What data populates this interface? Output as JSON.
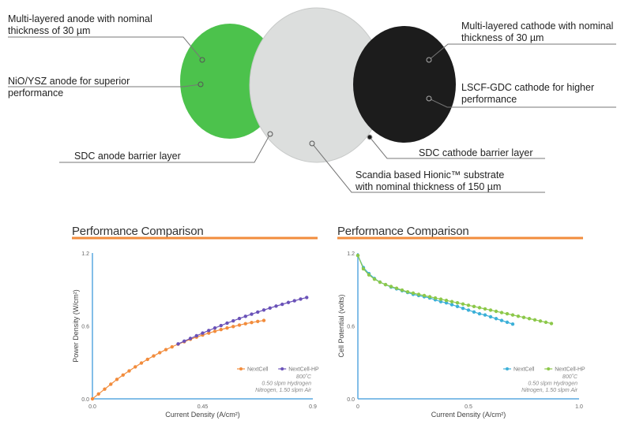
{
  "diagram": {
    "labels": {
      "anode_multilayer": "Multi-layered anode with nominal\nthickness of 30 µm",
      "anode_nio": "NiO/YSZ anode for superior\nperformance",
      "anode_barrier": "SDC anode barrier layer",
      "cathode_multilayer": "Multi-layered cathode with nominal\nthickness of 30 µm",
      "cathode_lscf": "LSCF-GDC cathode for higher\nperformance",
      "cathode_barrier": "SDC cathode barrier layer",
      "substrate": "Scandia based Hionic™ substrate\nwith nominal thickness of 150 µm"
    },
    "colors": {
      "anode": "#4cc24c",
      "substrate": "#dcdedd",
      "cathode": "#1c1c1c",
      "accent": "#f28c3c"
    }
  },
  "chart_data": [
    {
      "type": "scatter",
      "title": "Performance Comparison",
      "xlabel": "Current Density (A/cm²)",
      "ylabel": "Power Density (W/cm²)",
      "xlim": [
        0,
        0.9
      ],
      "ylim": [
        0,
        1.2
      ],
      "xticks": [
        "0.0",
        "0.45",
        "0.9"
      ],
      "yticks": [
        "0.0",
        "0.6",
        "1.2"
      ],
      "legend": "bottom-right",
      "annotation": "800˚C\n0.50 slpm Hydrogen\nNitrogen, 1.50 slpm Air",
      "series": [
        {
          "name": "NextCell",
          "color": "#f28c3c",
          "x": [
            0.0,
            0.025,
            0.05,
            0.075,
            0.1,
            0.125,
            0.15,
            0.175,
            0.2,
            0.225,
            0.25,
            0.275,
            0.3,
            0.325,
            0.35,
            0.375,
            0.4,
            0.425,
            0.45,
            0.475,
            0.5,
            0.525,
            0.55,
            0.575,
            0.6,
            0.625,
            0.65,
            0.675,
            0.7
          ],
          "y": [
            0.0,
            0.04,
            0.08,
            0.12,
            0.16,
            0.196,
            0.23,
            0.263,
            0.295,
            0.325,
            0.353,
            0.38,
            0.405,
            0.428,
            0.45,
            0.47,
            0.49,
            0.508,
            0.525,
            0.541,
            0.556,
            0.57,
            0.583,
            0.595,
            0.607,
            0.618,
            0.628,
            0.637,
            0.645
          ]
        },
        {
          "name": "NextCell-HP",
          "color": "#6a52b8",
          "x": [
            0.35,
            0.375,
            0.4,
            0.425,
            0.45,
            0.475,
            0.5,
            0.525,
            0.55,
            0.575,
            0.6,
            0.625,
            0.65,
            0.675,
            0.7,
            0.725,
            0.75,
            0.775,
            0.8,
            0.825,
            0.85,
            0.875
          ],
          "y": [
            0.452,
            0.475,
            0.497,
            0.519,
            0.541,
            0.562,
            0.583,
            0.603,
            0.623,
            0.642,
            0.661,
            0.679,
            0.697,
            0.714,
            0.731,
            0.747,
            0.763,
            0.778,
            0.793,
            0.807,
            0.821,
            0.834
          ]
        }
      ]
    },
    {
      "type": "scatter",
      "title": "Performance Comparison",
      "xlabel": "Current Density (A/cm²)",
      "ylabel": "Cell Potential (volts)",
      "xlim": [
        0,
        1.0
      ],
      "ylim": [
        0,
        1.2
      ],
      "xticks": [
        "0",
        "0.5",
        "1.0"
      ],
      "yticks": [
        "0.0",
        "0.6",
        "1.2"
      ],
      "legend": "bottom-right",
      "annotation": "800˚C\n0.50 slpm Hydrogen\nNitrogen, 1.50 slpm Air",
      "series": [
        {
          "name": "NextCell",
          "color": "#3cb0d8",
          "x": [
            0.0,
            0.025,
            0.05,
            0.075,
            0.1,
            0.125,
            0.15,
            0.175,
            0.2,
            0.225,
            0.25,
            0.275,
            0.3,
            0.325,
            0.35,
            0.375,
            0.4,
            0.425,
            0.45,
            0.475,
            0.5,
            0.525,
            0.55,
            0.575,
            0.6,
            0.625,
            0.65,
            0.675,
            0.7
          ],
          "y": [
            1.18,
            1.08,
            1.03,
            0.99,
            0.96,
            0.94,
            0.92,
            0.905,
            0.89,
            0.875,
            0.86,
            0.85,
            0.84,
            0.83,
            0.815,
            0.8,
            0.79,
            0.775,
            0.76,
            0.745,
            0.73,
            0.715,
            0.7,
            0.69,
            0.675,
            0.66,
            0.645,
            0.63,
            0.615
          ]
        },
        {
          "name": "NextCell-HP",
          "color": "#8cc84a",
          "x": [
            0.0,
            0.025,
            0.05,
            0.075,
            0.1,
            0.125,
            0.15,
            0.175,
            0.2,
            0.225,
            0.25,
            0.275,
            0.3,
            0.325,
            0.35,
            0.375,
            0.4,
            0.425,
            0.45,
            0.475,
            0.5,
            0.525,
            0.55,
            0.575,
            0.6,
            0.625,
            0.65,
            0.675,
            0.7,
            0.725,
            0.75,
            0.775,
            0.8,
            0.825,
            0.85,
            0.875
          ],
          "y": [
            1.18,
            1.07,
            1.02,
            0.985,
            0.96,
            0.94,
            0.925,
            0.91,
            0.895,
            0.88,
            0.87,
            0.86,
            0.85,
            0.84,
            0.83,
            0.82,
            0.81,
            0.8,
            0.79,
            0.78,
            0.77,
            0.76,
            0.75,
            0.74,
            0.73,
            0.72,
            0.71,
            0.7,
            0.69,
            0.68,
            0.67,
            0.66,
            0.65,
            0.64,
            0.63,
            0.62
          ]
        }
      ]
    }
  ]
}
